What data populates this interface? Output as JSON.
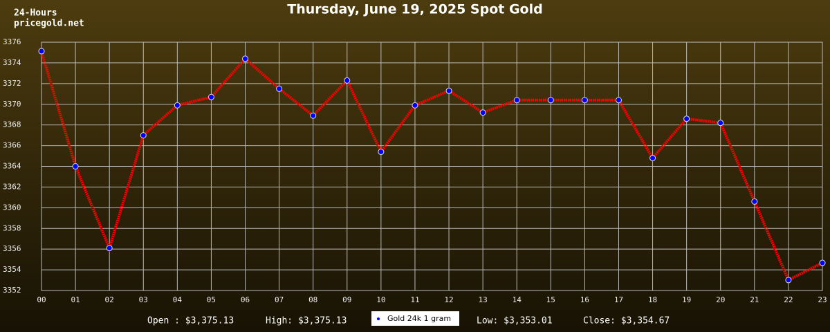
{
  "chart_data": {
    "type": "line",
    "title": "Thursday, June 19, 2025 Spot Gold",
    "header_lines": [
      "24-Hours",
      "pricegold.net"
    ],
    "categories": [
      "00",
      "01",
      "02",
      "03",
      "04",
      "05",
      "06",
      "07",
      "08",
      "09",
      "10",
      "11",
      "12",
      "13",
      "14",
      "15",
      "16",
      "17",
      "18",
      "19",
      "20",
      "21",
      "22",
      "23"
    ],
    "series": [
      {
        "name": "Gold 24k 1 gram",
        "color": "#ff0000",
        "marker_color": "#0000ff",
        "values": [
          3375.13,
          3364.0,
          3356.1,
          3367.0,
          3369.9,
          3370.7,
          3374.4,
          3371.5,
          3368.9,
          3372.3,
          3365.4,
          3369.9,
          3371.3,
          3369.2,
          3370.4,
          3370.4,
          3370.4,
          3370.4,
          3364.8,
          3368.6,
          3368.2,
          3360.6,
          3353.01,
          3354.67
        ]
      }
    ],
    "ylim": [
      3352,
      3376
    ],
    "yticks": [
      3352,
      3354,
      3356,
      3358,
      3360,
      3362,
      3364,
      3366,
      3368,
      3370,
      3372,
      3374,
      3376
    ],
    "grid": true,
    "summary_left": [
      "Open : $3,375.13",
      "High: $3,375.13"
    ],
    "summary_right": [
      "Low: $3,353.01",
      "Close: $3,354.67"
    ]
  }
}
